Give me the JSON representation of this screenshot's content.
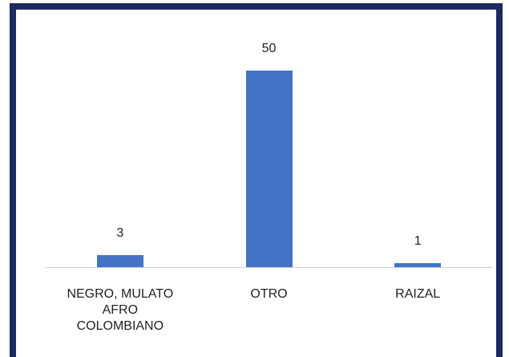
{
  "chart_data": {
    "type": "bar",
    "categories": [
      "NEGRO, MULATO AFRO COLOMBIANO",
      "OTRO",
      "RAIZAL"
    ],
    "values": [
      3,
      50,
      1
    ],
    "color": "#4472c4"
  }
}
